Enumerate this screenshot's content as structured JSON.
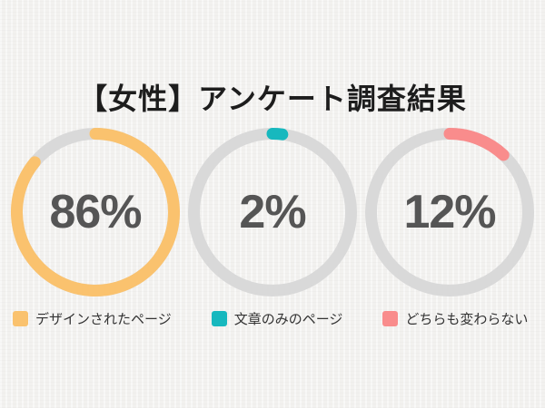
{
  "title": "【女性】アンケート調査結果",
  "chart_data": {
    "type": "pie",
    "subtype": "donut-multiples",
    "title": "【女性】アンケート調査結果",
    "unit": "%",
    "track_color": "#d9d9d9",
    "value_text_color": "#555555",
    "legend_position": "bottom",
    "segments": [
      {
        "label": "デザインされたページ",
        "value": 86,
        "display": "86%",
        "color": "#fac26e"
      },
      {
        "label": "文章のみのページ",
        "value": 2,
        "display": "2%",
        "color": "#17b8be"
      },
      {
        "label": "どちらも変わらない",
        "value": 12,
        "display": "12%",
        "color": "#f98c8c"
      }
    ]
  }
}
